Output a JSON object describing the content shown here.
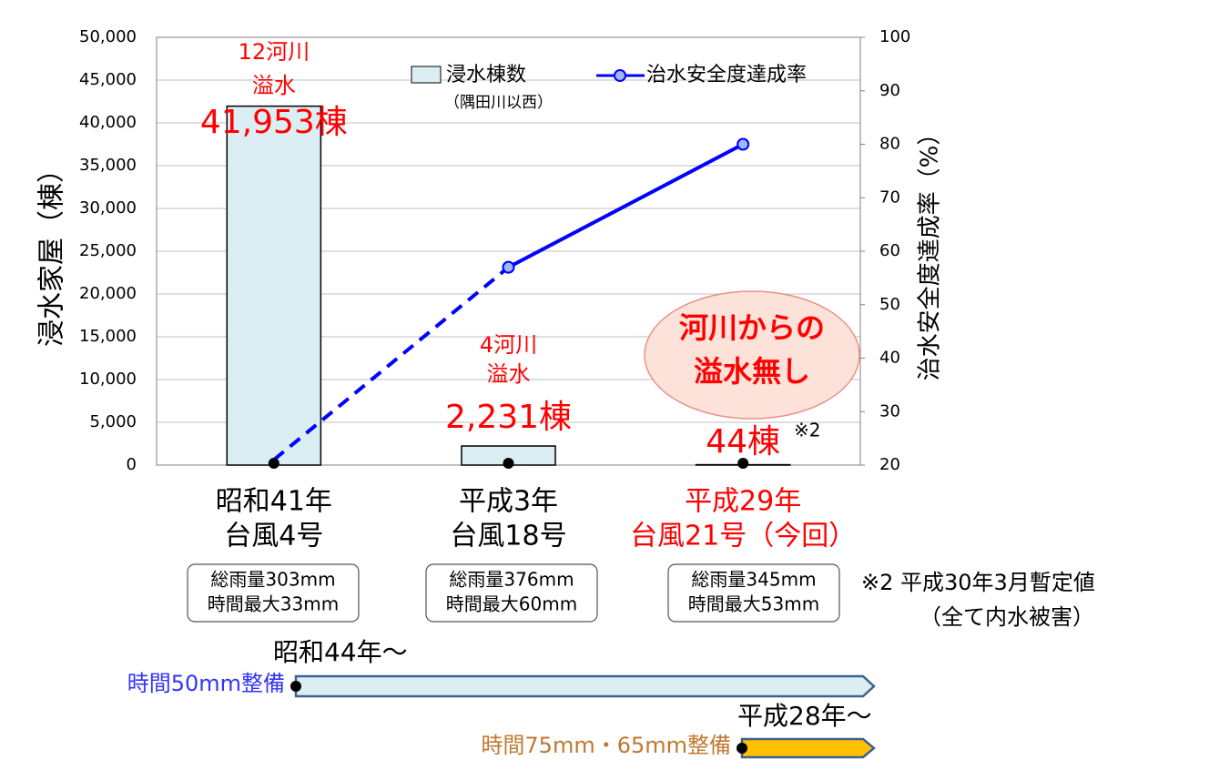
{
  "chart_data": {
    "type": "bar",
    "categories": [
      [
        "昭和41年",
        "台風4号"
      ],
      [
        "平成3年",
        "台風18号"
      ],
      [
        "平成29年",
        "台風21号（今回）"
      ]
    ],
    "category_colors": [
      "#000000",
      "#000000",
      "#ff0000"
    ],
    "series": [
      {
        "name": "浸水棟数",
        "color": "#dbeef4",
        "values": [
          41953,
          2231,
          44
        ],
        "value_labels": [
          "41,953棟",
          "2,231棟",
          "44棟"
        ]
      },
      {
        "name": "治水安全度達成率",
        "type": "line",
        "axis": "y2",
        "color": "#0000ff",
        "values": [
          21,
          57,
          80
        ]
      }
    ],
    "legend_note": "（隅田川以西）",
    "ylabel": "浸水家屋（棟）",
    "y2label": "治水安全度達成率（%）",
    "ylim": [
      0,
      50000
    ],
    "yticks": [
      0,
      {
        "value": 5000,
        "label": "5,000"
      },
      {
        "value": 10000,
        "label": "10,000"
      },
      {
        "value": 15000,
        "label": "15,000"
      },
      {
        "value": 20000,
        "label": "20,000"
      },
      {
        "value": 25000,
        "label": "25,000"
      },
      {
        "value": 30000,
        "label": "30,000"
      },
      {
        "value": 35000,
        "label": "35,000"
      },
      {
        "value": 40000,
        "label": "40,000"
      },
      {
        "value": 45000,
        "label": "45,000"
      },
      {
        "value": 50000,
        "label": "50,000"
      }
    ],
    "y2lim": [
      20,
      100
    ],
    "y2ticks": [
      20,
      30,
      40,
      50,
      60,
      70,
      80,
      90,
      100
    ],
    "grid": true,
    "overflow_notes": [
      [
        "12河川",
        "溢水"
      ],
      [
        "4河川",
        "溢水"
      ],
      [
        "河川からの",
        "溢水無し"
      ]
    ],
    "value_label_note": "※2",
    "rainfall": [
      [
        "総雨量303mm",
        "時間最大33mm"
      ],
      [
        "総雨量376mm",
        "時間最大60mm"
      ],
      [
        "総雨量345mm",
        "時間最大53mm"
      ]
    ],
    "footnote": [
      "※2 平成30年3月暫定値",
      "（全て内水被害）"
    ],
    "timeline": [
      {
        "start": "昭和44年～",
        "label": "時間50mm整備",
        "color": "#dbeef4",
        "label_color": "#3333ff"
      },
      {
        "start": "平成28年～",
        "label": "時間75mm・65mm整備",
        "color": "#ffc000",
        "label_color": "#c07830"
      }
    ]
  }
}
